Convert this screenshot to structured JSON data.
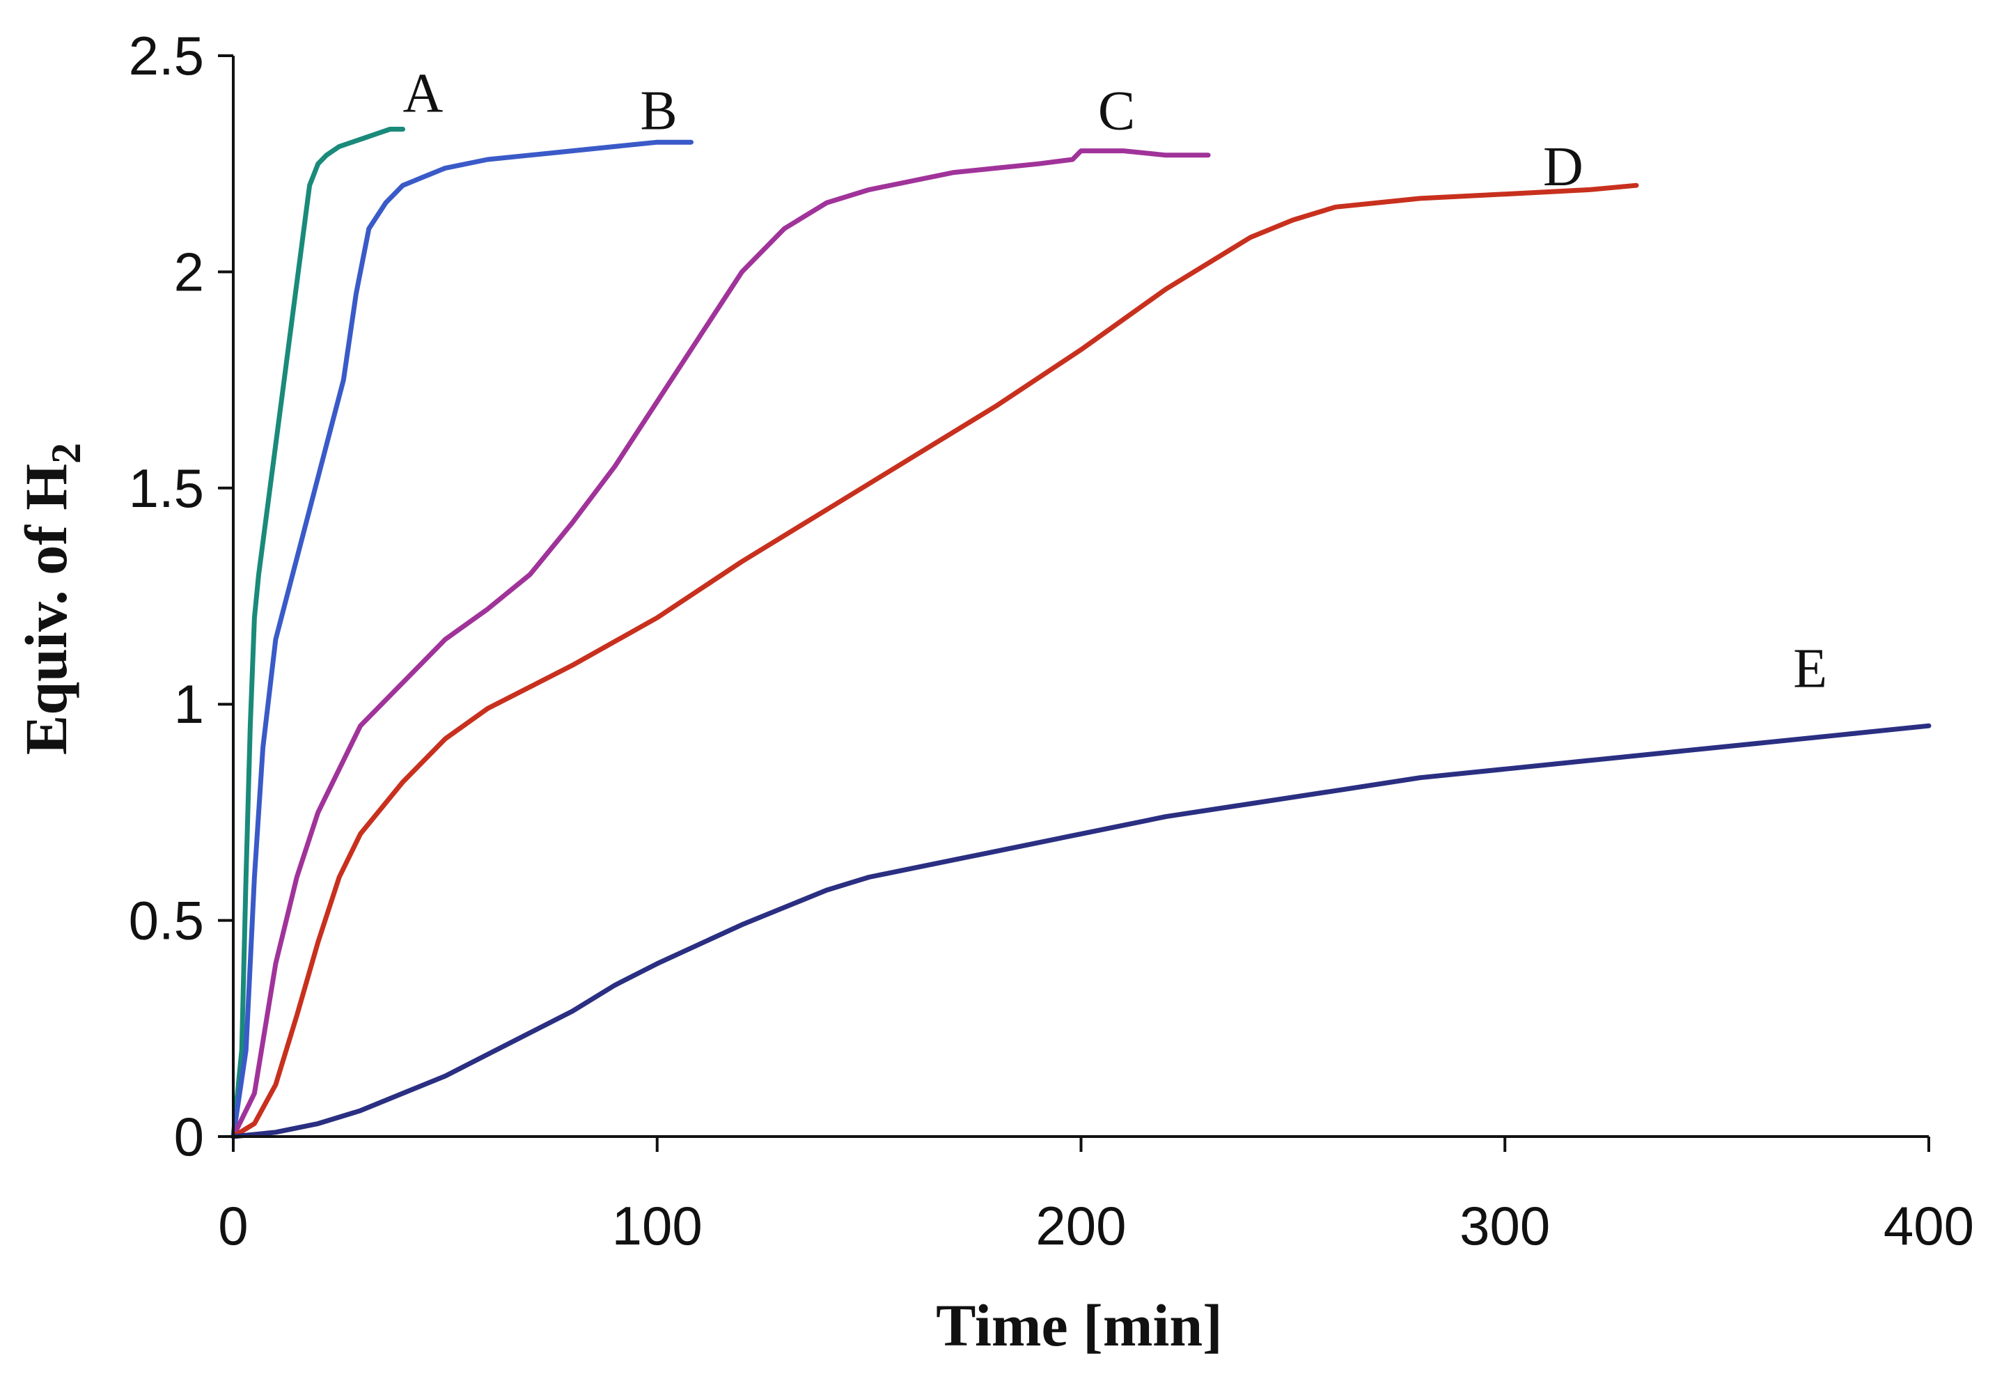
{
  "chart_data": {
    "type": "line",
    "title": "",
    "xlabel": "Time [min]",
    "ylabel": "Equiv. of H",
    "ylabel_subscript": "2",
    "xlim": [
      0,
      400
    ],
    "ylim": [
      0,
      2.5
    ],
    "xticks": [
      0,
      100,
      200,
      300,
      400
    ],
    "xtick_labels": [
      "0",
      "100",
      "200",
      "300",
      "400"
    ],
    "yticks": [
      0,
      0.5,
      1,
      1.5,
      2,
      2.5
    ],
    "ytick_labels": [
      "0",
      "0.5",
      "1",
      "1.5",
      "2",
      "2.5"
    ],
    "grid": false,
    "series": [
      {
        "name": "A",
        "color": "#1a8a7a",
        "x": [
          0,
          2,
          3,
          4,
          5,
          6,
          8,
          10,
          12,
          14,
          16,
          18,
          20,
          22,
          25,
          28,
          31,
          34,
          37,
          40
        ],
        "y": [
          0,
          0.2,
          0.6,
          0.95,
          1.2,
          1.3,
          1.45,
          1.6,
          1.75,
          1.9,
          2.05,
          2.2,
          2.25,
          2.27,
          2.29,
          2.3,
          2.31,
          2.32,
          2.33,
          2.33
        ]
      },
      {
        "name": "B",
        "color": "#3a5ac8",
        "x": [
          0,
          3,
          5,
          7,
          10,
          14,
          18,
          22,
          26,
          29,
          32,
          36,
          40,
          45,
          50,
          60,
          70,
          80,
          90,
          100,
          108
        ],
        "y": [
          0,
          0.2,
          0.6,
          0.9,
          1.15,
          1.3,
          1.45,
          1.6,
          1.75,
          1.95,
          2.1,
          2.16,
          2.2,
          2.22,
          2.24,
          2.26,
          2.27,
          2.28,
          2.29,
          2.3,
          2.3
        ]
      },
      {
        "name": "C",
        "color": "#a0339a",
        "x": [
          0,
          5,
          10,
          15,
          20,
          25,
          30,
          40,
          50,
          60,
          70,
          80,
          90,
          100,
          110,
          120,
          130,
          140,
          150,
          160,
          170,
          180,
          190,
          198,
          200,
          210,
          220,
          230
        ],
        "y": [
          0,
          0.1,
          0.4,
          0.6,
          0.75,
          0.85,
          0.95,
          1.05,
          1.15,
          1.22,
          1.3,
          1.42,
          1.55,
          1.7,
          1.85,
          2.0,
          2.1,
          2.16,
          2.19,
          2.21,
          2.23,
          2.24,
          2.25,
          2.26,
          2.28,
          2.28,
          2.27,
          2.27
        ]
      },
      {
        "name": "D",
        "color": "#c8301e",
        "x": [
          0,
          5,
          10,
          15,
          20,
          25,
          30,
          40,
          50,
          60,
          70,
          80,
          100,
          120,
          140,
          160,
          180,
          200,
          220,
          240,
          250,
          260,
          270,
          280,
          300,
          320,
          331
        ],
        "y": [
          0,
          0.03,
          0.12,
          0.28,
          0.45,
          0.6,
          0.7,
          0.82,
          0.92,
          0.99,
          1.04,
          1.09,
          1.2,
          1.33,
          1.45,
          1.57,
          1.69,
          1.82,
          1.96,
          2.08,
          2.12,
          2.15,
          2.16,
          2.17,
          2.18,
          2.19,
          2.2
        ]
      },
      {
        "name": "E",
        "color": "#2a2f82",
        "x": [
          0,
          10,
          20,
          30,
          40,
          50,
          60,
          70,
          80,
          90,
          100,
          120,
          140,
          150,
          160,
          180,
          200,
          220,
          240,
          260,
          280,
          300,
          320,
          340,
          360,
          380,
          400
        ],
        "y": [
          0,
          0.01,
          0.03,
          0.06,
          0.1,
          0.14,
          0.19,
          0.24,
          0.29,
          0.35,
          0.4,
          0.49,
          0.57,
          0.6,
          0.62,
          0.66,
          0.7,
          0.74,
          0.77,
          0.8,
          0.83,
          0.85,
          0.87,
          0.89,
          0.91,
          0.93,
          0.95
        ]
      }
    ],
    "annotations": [
      {
        "text": "A",
        "x": 40,
        "y": 2.37
      },
      {
        "text": "B",
        "x": 96,
        "y": 2.33
      },
      {
        "text": "C",
        "x": 204,
        "y": 2.33
      },
      {
        "text": "D",
        "x": 309,
        "y": 2.2
      },
      {
        "text": "E",
        "x": 368,
        "y": 1.04
      }
    ]
  }
}
